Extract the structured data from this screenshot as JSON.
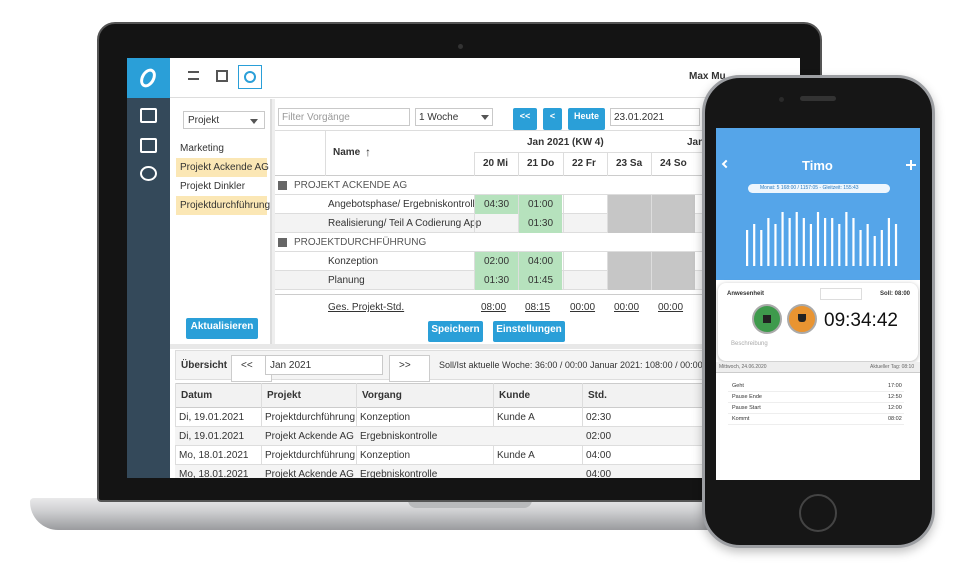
{
  "laptop": {
    "user": "Max Mu",
    "filter": {
      "select": "Projekt",
      "items": [
        {
          "label": "Marketing",
          "highlight": false
        },
        {
          "label": "Projekt Ackende AG",
          "highlight": true
        },
        {
          "label": "Projekt Dinkler",
          "highlight": false
        },
        {
          "label": "Projektdurchführung",
          "highlight": true
        }
      ],
      "button": "Aktualisieren"
    },
    "toolbar": {
      "filter_placeholder": "Filter Vorgänge",
      "range": "1 Woche",
      "first": "<<",
      "prev": "<",
      "today": "Heute",
      "date": "23.01.2021"
    },
    "grid": {
      "week": "Jan 2021 (KW 4)",
      "next_week": "Jan",
      "name_header": "Name",
      "sort_icon": "↑",
      "days": [
        "20 Mi",
        "21 Do",
        "22 Fr",
        "23 Sa",
        "24 So"
      ],
      "groups": [
        {
          "title": "PROJEKT ACKENDE AG",
          "rows": [
            {
              "name": "Angebotsphase/ Ergebniskontrolle",
              "hours": [
                "04:30",
                "01:00",
                null,
                null,
                null
              ]
            },
            {
              "name": "Realisierung/ Teil A Codierung App",
              "hours": [
                null,
                "01:30",
                null,
                null,
                null
              ]
            }
          ]
        },
        {
          "title": "PROJEKTDURCHFÜHRUNG",
          "rows": [
            {
              "name": "Konzeption",
              "hours": [
                "02:00",
                "04:00",
                null,
                null,
                null
              ]
            },
            {
              "name": "Planung",
              "hours": [
                "01:30",
                "01:45",
                null,
                null,
                null
              ]
            }
          ]
        }
      ],
      "totals_label": "Ges. Projekt-Std.",
      "totals": [
        "08:00",
        "08:15",
        "00:00",
        "00:00",
        "00:00"
      ]
    },
    "actions": [
      "Speichern",
      "Einstellungen"
    ],
    "overview": {
      "title": "Übersicht",
      "prev": "<<",
      "month": "Jan 2021",
      "next": ">>",
      "week_summary": "Soll/Ist aktuelle Woche: 36:00 / 00:00",
      "month_summary": "Januar 2021: 108:00 / 00:00",
      "columns": [
        "Datum",
        "Projekt",
        "Vorgang",
        "Kunde",
        "Std."
      ],
      "rows": [
        [
          "Di, 19.01.2021",
          "Projektdurchführung",
          "Konzeption",
          "Kunde A",
          "02:30"
        ],
        [
          "Di, 19.01.2021",
          "Projekt Ackende AG",
          "Ergebniskontrolle",
          null,
          "02:00"
        ],
        [
          "Mo, 18.01.2021",
          "Projektdurchführung",
          "Konzeption",
          "Kunde A",
          "04:00"
        ],
        [
          "Mo, 18.01.2021",
          "Projekt Ackende AG",
          "Ergebniskontrolle",
          null,
          "04:00"
        ]
      ]
    }
  },
  "phone": {
    "app": "Timo",
    "summary": "Monat: 5 168:00 / 1157:05 - Gleitzeit: 155:43",
    "chart": {
      "values": [
        6,
        7,
        6,
        8,
        7,
        9,
        8,
        9,
        8,
        7,
        9,
        8,
        8,
        7,
        9,
        8,
        6,
        7,
        5,
        6,
        8,
        7
      ],
      "color": "#ffffff"
    },
    "card": {
      "title": "Anwesenheit",
      "target": "Soll: 08:00",
      "clock": "09:34:42",
      "description": "Beschreibung"
    },
    "date": "Mittwoch, 24.06.2020",
    "today": "Aktueller Tag: 08:10",
    "log": [
      {
        "label": "Geht",
        "time": "17:00"
      },
      {
        "label": "Pause Ende",
        "time": "12:50"
      },
      {
        "label": "Pause Start",
        "time": "12:00"
      },
      {
        "label": "Kommt",
        "time": "08:02"
      }
    ]
  }
}
